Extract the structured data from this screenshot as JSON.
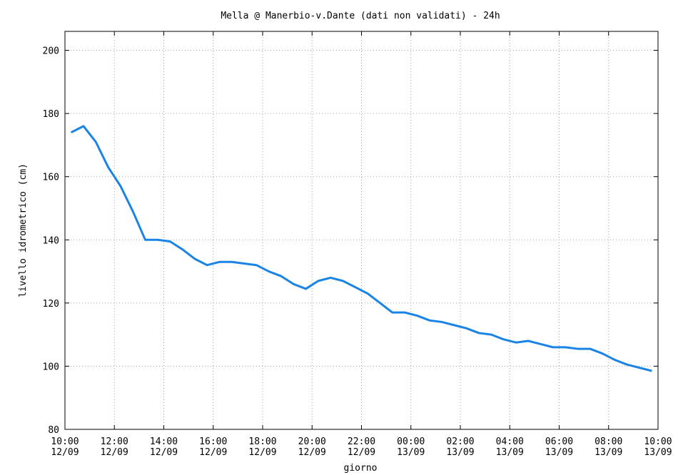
{
  "chart_data": {
    "type": "line",
    "title": "Mella @ Manerbio-v.Dante (dati non validati) - 24h",
    "xlabel": "giorno",
    "ylabel": "livello idrometrico (cm)",
    "x": [
      "12/09 10:15",
      "12/09 10:45",
      "12/09 11:15",
      "12/09 11:45",
      "12/09 12:15",
      "12/09 12:45",
      "12/09 13:15",
      "12/09 13:45",
      "12/09 14:15",
      "12/09 14:45",
      "12/09 15:15",
      "12/09 15:45",
      "12/09 16:15",
      "12/09 16:45",
      "12/09 17:15",
      "12/09 17:45",
      "12/09 18:15",
      "12/09 18:45",
      "12/09 19:15",
      "12/09 19:45",
      "12/09 20:15",
      "12/09 20:45",
      "12/09 21:15",
      "12/09 21:45",
      "12/09 22:15",
      "12/09 22:45",
      "12/09 23:15",
      "12/09 23:45",
      "13/09 00:15",
      "13/09 00:45",
      "13/09 01:15",
      "13/09 01:45",
      "13/09 02:15",
      "13/09 02:45",
      "13/09 03:15",
      "13/09 03:45",
      "13/09 04:15",
      "13/09 04:45",
      "13/09 05:15",
      "13/09 05:45",
      "13/09 06:15",
      "13/09 06:45",
      "13/09 07:15",
      "13/09 07:45",
      "13/09 08:15",
      "13/09 08:45",
      "13/09 09:15",
      "13/09 09:45"
    ],
    "series": [
      {
        "name": "livello",
        "color": "#1a84e6",
        "values": [
          174,
          176,
          171,
          163,
          157,
          149,
          140,
          140,
          139.5,
          137,
          134,
          132,
          133,
          133,
          132.5,
          132,
          130,
          128.5,
          126,
          124.5,
          127,
          128,
          127,
          125,
          123,
          120,
          117,
          117,
          116,
          114.5,
          114,
          113,
          112,
          110.5,
          110,
          108.5,
          107.5,
          108,
          107,
          106,
          106,
          105.5,
          105.5,
          104,
          102,
          100.5,
          99.5,
          98.5
        ]
      }
    ],
    "xlim": [
      "12/09 10:00",
      "13/09 10:00"
    ],
    "xticks": [
      {
        "value": "12/09 10:00",
        "label": [
          "10:00",
          "12/09"
        ]
      },
      {
        "value": "12/09 12:00",
        "label": [
          "12:00",
          "12/09"
        ]
      },
      {
        "value": "12/09 14:00",
        "label": [
          "14:00",
          "12/09"
        ]
      },
      {
        "value": "12/09 16:00",
        "label": [
          "16:00",
          "12/09"
        ]
      },
      {
        "value": "12/09 18:00",
        "label": [
          "18:00",
          "12/09"
        ]
      },
      {
        "value": "12/09 20:00",
        "label": [
          "20:00",
          "12/09"
        ]
      },
      {
        "value": "12/09 22:00",
        "label": [
          "22:00",
          "12/09"
        ]
      },
      {
        "value": "13/09 00:00",
        "label": [
          "00:00",
          "13/09"
        ]
      },
      {
        "value": "13/09 02:00",
        "label": [
          "02:00",
          "13/09"
        ]
      },
      {
        "value": "13/09 04:00",
        "label": [
          "04:00",
          "13/09"
        ]
      },
      {
        "value": "13/09 06:00",
        "label": [
          "06:00",
          "13/09"
        ]
      },
      {
        "value": "13/09 08:00",
        "label": [
          "08:00",
          "13/09"
        ]
      },
      {
        "value": "13/09 10:00",
        "label": [
          "10:00",
          "13/09"
        ]
      }
    ],
    "ylim": [
      80,
      206
    ],
    "yticks": [
      80,
      100,
      120,
      140,
      160,
      180,
      200
    ],
    "grid": true
  }
}
